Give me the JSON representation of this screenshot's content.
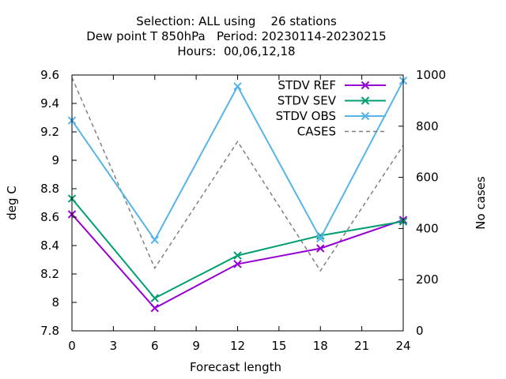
{
  "chart_data": {
    "type": "line",
    "title_lines": [
      "Selection: ALL using    26 stations",
      "Dew point T 850hPa   Period: 20230114-20230215",
      "Hours:  00,06,12,18"
    ],
    "xlabel": "Forecast length",
    "ylabel": "deg C",
    "y2label": "No cases",
    "x": [
      0,
      6,
      12,
      18,
      24
    ],
    "xticks": [
      0,
      3,
      6,
      9,
      12,
      15,
      18,
      21,
      24
    ],
    "xlim": [
      0,
      24
    ],
    "ylim": [
      7.8,
      9.6
    ],
    "yticks": [
      "7.8",
      "8",
      "8.2",
      "8.4",
      "8.6",
      "8.8",
      "9",
      "9.2",
      "9.4",
      "9.6"
    ],
    "y2lim": [
      0,
      1000
    ],
    "y2ticks": [
      "0",
      "200",
      "400",
      "600",
      "800",
      "1000"
    ],
    "legend_position": "top-right",
    "grid": false,
    "series": [
      {
        "name": "STDV REF",
        "axis": "y1",
        "color": "#9400d3",
        "marker": "x",
        "values": [
          8.62,
          7.96,
          8.27,
          8.38,
          8.58
        ]
      },
      {
        "name": "STDV SEV",
        "axis": "y1",
        "color": "#009e73",
        "marker": "x",
        "values": [
          8.73,
          8.03,
          8.33,
          8.47,
          8.57
        ]
      },
      {
        "name": "STDV OBS",
        "axis": "y1",
        "color": "#56b4e9",
        "marker": "x",
        "values": [
          9.28,
          8.44,
          9.52,
          8.45,
          9.56
        ]
      },
      {
        "name": "CASES",
        "axis": "y2",
        "color": "#7f7f7f",
        "dashed": true,
        "values": [
          990,
          245,
          740,
          235,
          725
        ]
      }
    ]
  }
}
